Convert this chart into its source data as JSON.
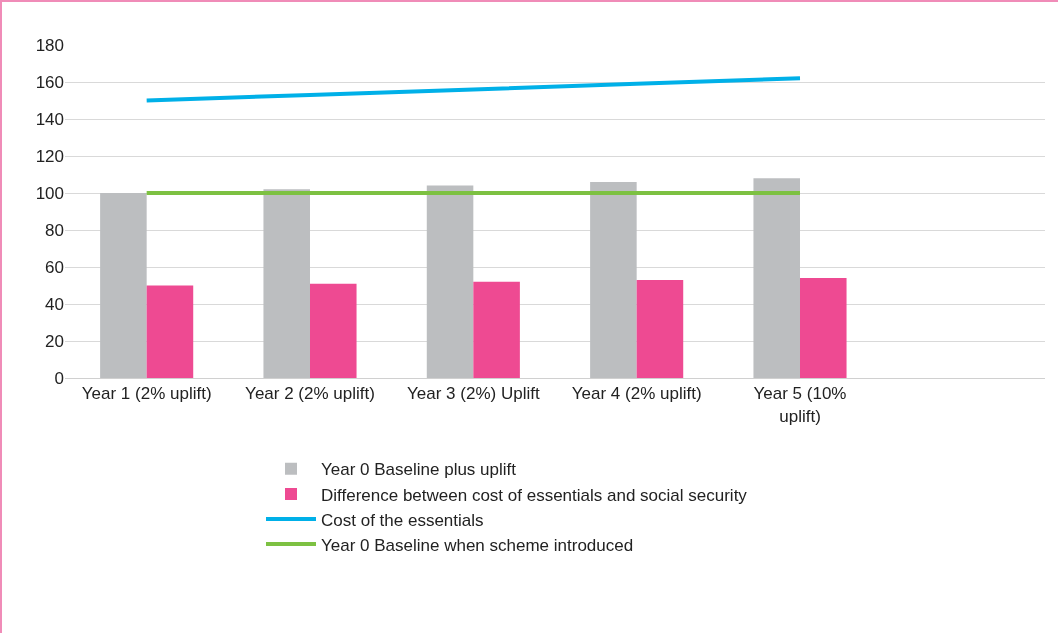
{
  "chart_data": {
    "type": "bar",
    "categories": [
      "Year 1 (2% uplift)",
      "Year 2 (2% uplift)",
      "Year 3 (2%) Uplift",
      "Year 4 (2% uplift)",
      "Year 5 (10% uplift)",
      null
    ],
    "series": [
      {
        "name": "Year 0 Baseline plus uplift",
        "color": "#bcbec0",
        "values": [
          100,
          102,
          104,
          106,
          108,
          null
        ]
      },
      {
        "name": "Difference between cost of essentials and social security",
        "color": "#ee4a92",
        "values": [
          50,
          51,
          52,
          53,
          54,
          null
        ]
      },
      {
        "name": "Cost of the essentials",
        "type": "line",
        "color": "#00b0e8",
        "values": [
          150,
          153,
          156,
          159,
          162,
          null
        ]
      },
      {
        "name": "Year 0 Baseline when scheme introduced",
        "type": "line",
        "color": "#7dc142",
        "values": [
          100,
          100,
          100,
          100,
          100,
          null
        ]
      }
    ],
    "ylim": [
      0,
      180
    ],
    "yticks": [
      0,
      20,
      40,
      60,
      80,
      100,
      120,
      140,
      160,
      180
    ],
    "grid": "y",
    "legend": "bottom",
    "marker": "none",
    "line_style": "solid"
  }
}
